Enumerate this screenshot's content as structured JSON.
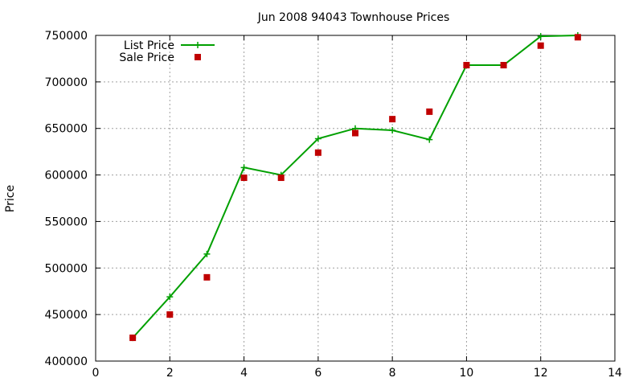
{
  "chart_data": {
    "type": "line",
    "title": "Jun 2008 94043 Townhouse Prices",
    "xlabel": "",
    "ylabel": "Price",
    "xlim": [
      0,
      14
    ],
    "ylim": [
      400000,
      750000
    ],
    "xticks": [
      0,
      2,
      4,
      6,
      8,
      10,
      12,
      14
    ],
    "yticks": [
      400000,
      450000,
      500000,
      550000,
      600000,
      650000,
      700000,
      750000
    ],
    "grid": true,
    "legend_position": "top-left",
    "series": [
      {
        "name": "List Price",
        "style": "line-with-plus-markers",
        "color": "#00a000",
        "x": [
          1,
          2,
          3,
          4,
          5,
          6,
          7,
          8,
          9,
          10,
          11,
          12,
          13
        ],
        "y": [
          425000,
          469000,
          515000,
          608000,
          600000,
          639000,
          650000,
          648000,
          638000,
          718000,
          718000,
          749000,
          750000
        ]
      },
      {
        "name": "Sale Price",
        "style": "square-markers",
        "color": "#c00000",
        "x": [
          1,
          2,
          3,
          4,
          5,
          6,
          7,
          8,
          9,
          10,
          11,
          12,
          13
        ],
        "y": [
          425000,
          450000,
          490000,
          597000,
          597000,
          624000,
          645000,
          660000,
          668000,
          718000,
          718000,
          739000,
          748000
        ]
      }
    ]
  }
}
